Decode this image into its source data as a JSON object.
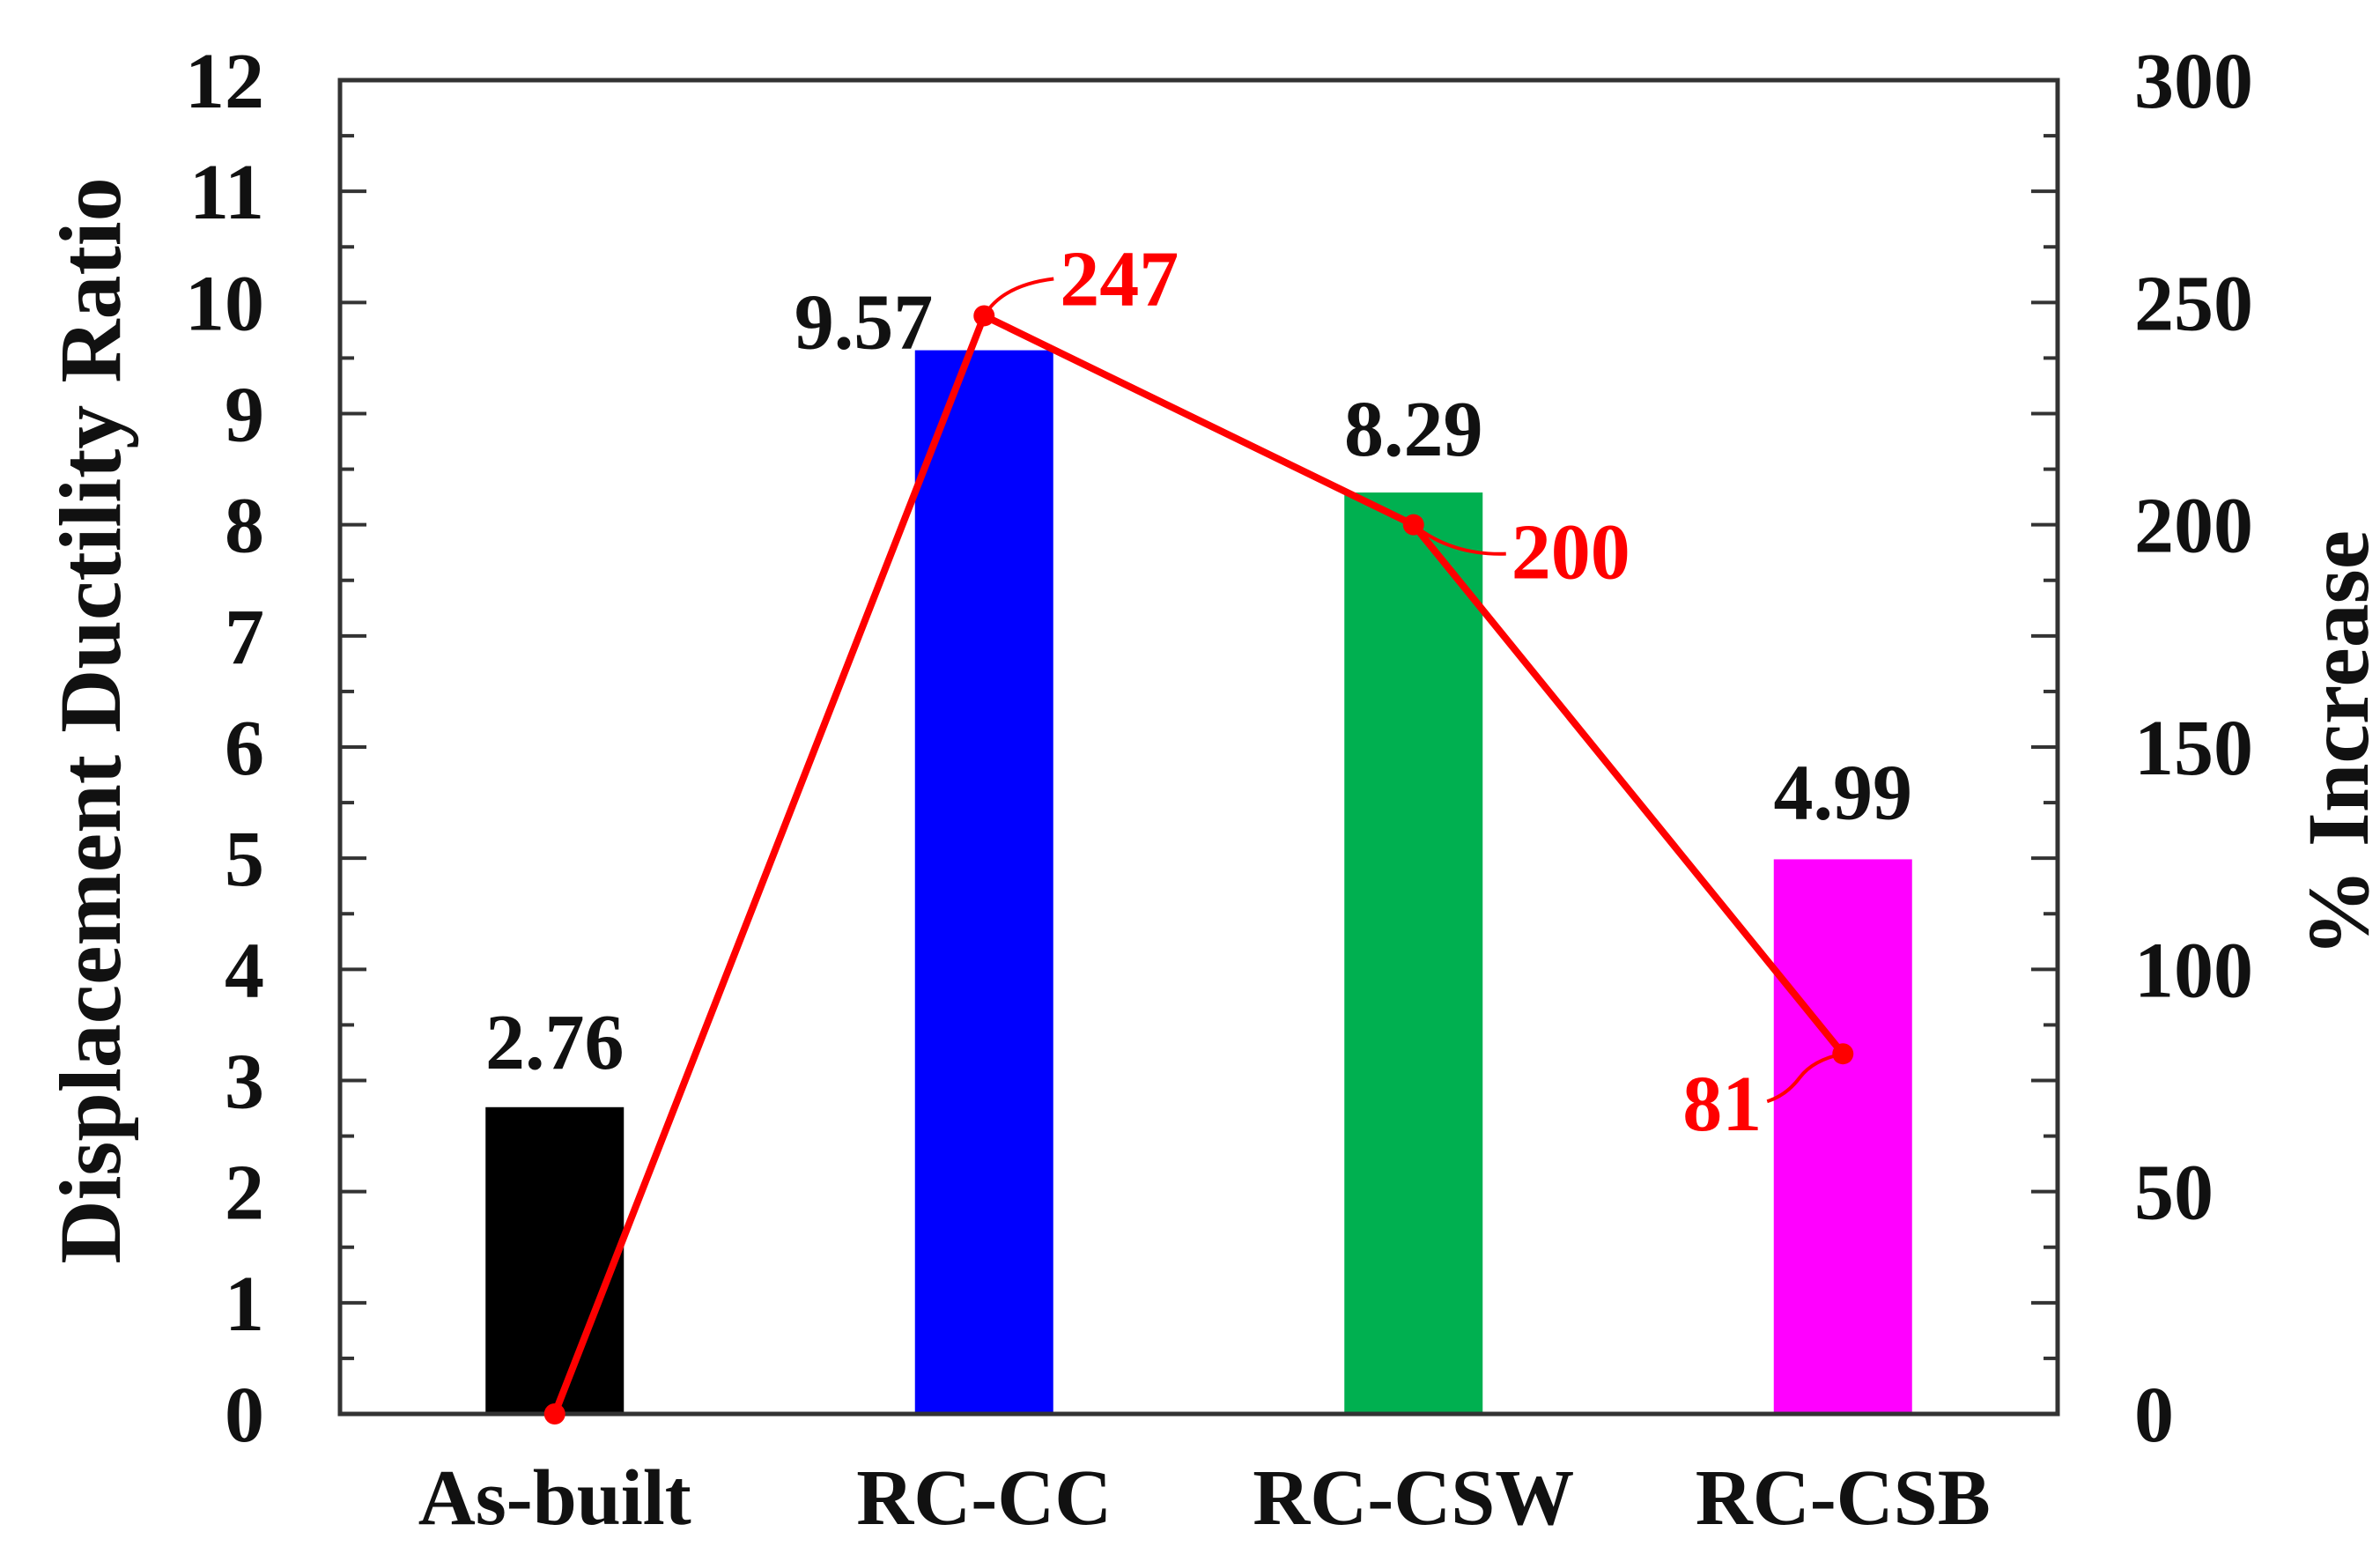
{
  "chart_data": {
    "type": "bar",
    "categories": [
      "As-built",
      "RC-CC",
      "RC-CSW",
      "RC-CSB"
    ],
    "series": [
      {
        "type": "bar",
        "axis": "left",
        "values": [
          2.76,
          9.57,
          8.29,
          4.99
        ],
        "colors": [
          "#000000",
          "#0000ff",
          "#00b050",
          "#ff00ff"
        ]
      },
      {
        "type": "line",
        "axis": "right",
        "values": [
          0,
          247,
          200,
          81
        ],
        "color": "#ff0000"
      }
    ],
    "ylabel": "Displacement Ductility Ratio",
    "y2label": "% Increase",
    "ylim": [
      0,
      12
    ],
    "y2lim": [
      0,
      300
    ],
    "yticks": [
      0,
      1,
      2,
      3,
      4,
      5,
      6,
      7,
      8,
      9,
      10,
      11,
      12
    ],
    "y2ticks": [
      0,
      50,
      100,
      150,
      200,
      250,
      300
    ],
    "grid": false,
    "legend": "none",
    "frame_color": "#333333"
  }
}
